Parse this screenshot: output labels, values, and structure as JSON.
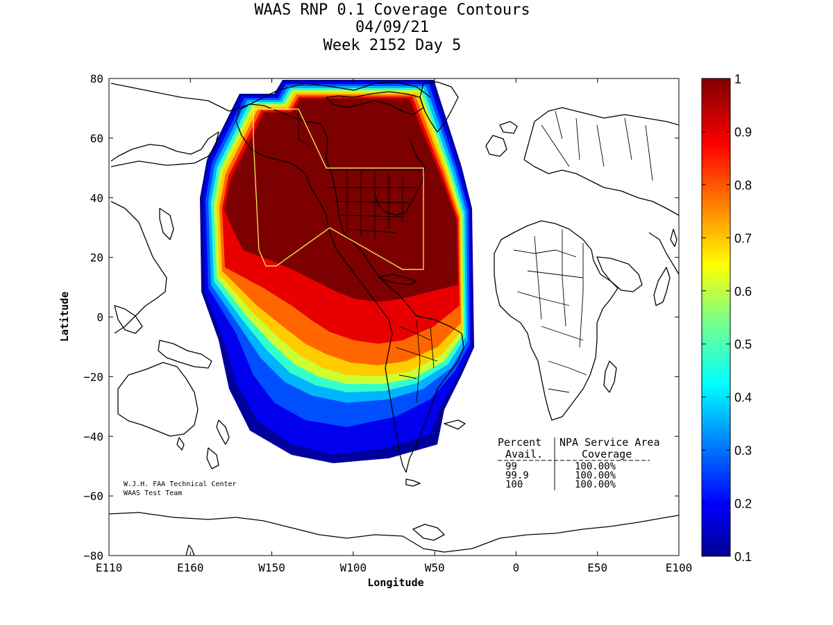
{
  "title": {
    "line1": "WAAS RNP 0.1 Coverage Contours",
    "line2": "04/09/21",
    "line3": "Week 2152 Day 5"
  },
  "axes": {
    "xlabel": "Longitude",
    "ylabel": "Latitude",
    "x_ticks": [
      "E110",
      "E160",
      "W150",
      "W100",
      "W50",
      "0",
      "E50",
      "E100"
    ],
    "y_ticks": [
      "80",
      "60",
      "40",
      "20",
      "0",
      "−20",
      "−40",
      "−60",
      "−80"
    ]
  },
  "colorbar": {
    "ticks": [
      "1",
      "0.9",
      "0.8",
      "0.7",
      "0.6",
      "0.5",
      "0.4",
      "0.3",
      "0.2",
      "0.1"
    ],
    "colormap": "jet"
  },
  "credit": {
    "line1": "W.J.H. FAA Technical Center",
    "line2": "WAAS Test Team"
  },
  "coverage_table": {
    "header_left": "Percent",
    "header_right": "NPA Service Area",
    "sub_left": "Avail.",
    "sub_right": "Coverage",
    "rows": [
      {
        "avail": "99",
        "coverage": "100.00%"
      },
      {
        "avail": "99.9",
        "coverage": "100.00%"
      },
      {
        "avail": "100",
        "coverage": "100.00%"
      }
    ]
  },
  "map_data": {
    "x_range_deg_east": [
      110,
      460
    ],
    "y_range_deg": [
      -80,
      80
    ],
    "service_area_outline_color": "#ffff66"
  }
}
